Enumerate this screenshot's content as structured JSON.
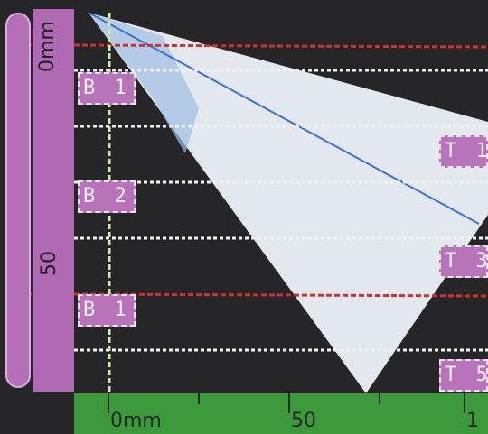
{
  "colors": {
    "ruler_purple": "#b06ab3",
    "ruler_green": "#3c9a3c",
    "red_gate": "#d03030",
    "blue_beam": "#3a6fd6",
    "wedge_white": "#e3e8ee"
  },
  "vertical_ruler": {
    "label_top": "0mm",
    "label_mid": "50"
  },
  "horizontal_ruler": {
    "label_left": "0mm",
    "label_mid": "50",
    "label_right": "1"
  },
  "markers_left": [
    {
      "text": "B 1"
    },
    {
      "text": "B 2"
    },
    {
      "text": "B 1"
    }
  ],
  "markers_right": [
    {
      "text": "T 1"
    },
    {
      "text": "T 3"
    },
    {
      "text": "T 5"
    }
  ]
}
